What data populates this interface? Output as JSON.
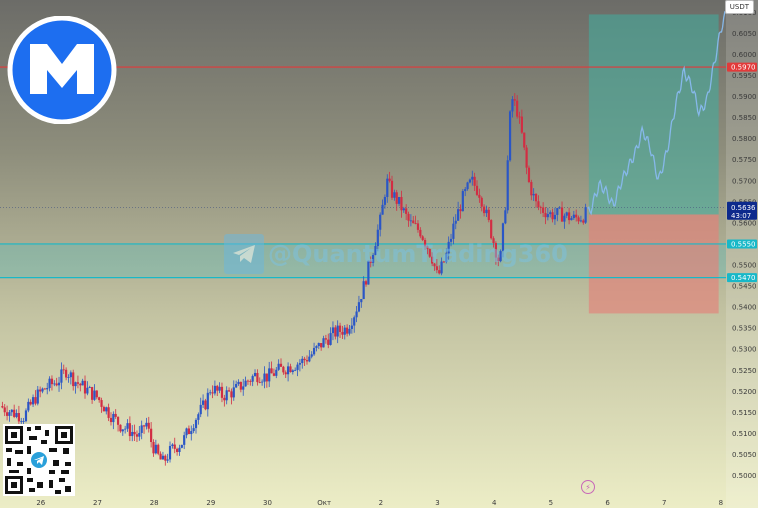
{
  "chart_data": {
    "type": "candlestick",
    "quote_currency": "USDT",
    "ylim": [
      0.498,
      0.6115
    ],
    "y_ticks": [
      "0.6100",
      "0.6050",
      "0.6000",
      "0.5950",
      "0.5900",
      "0.5850",
      "0.5800",
      "0.5750",
      "0.5700",
      "0.5650",
      "0.5600",
      "0.5550",
      "0.5500",
      "0.5450",
      "0.5400",
      "0.5350",
      "0.5300",
      "0.5250",
      "0.5200",
      "0.5150",
      "0.5100",
      "0.5050",
      "0.5000"
    ],
    "x_ticks": [
      "26",
      "27",
      "28",
      "29",
      "30",
      "Окт",
      "2",
      "3",
      "4",
      "5",
      "6",
      "7",
      "8"
    ],
    "x_tick_days": [
      0,
      1,
      2,
      3,
      4,
      5,
      6,
      7,
      8,
      9,
      10,
      11,
      12
    ],
    "xlim_days": [
      -0.72,
      12.09
    ],
    "last_price": {
      "value": "0.5636",
      "timer": "43:07",
      "price": 0.5636
    },
    "levels": [
      {
        "label": "0.5970",
        "price": 0.597,
        "color": "#e23a3a"
      },
      {
        "label": "0.5550",
        "price": 0.555,
        "color": "#18b8c8"
      },
      {
        "label": "0.5470",
        "price": 0.547,
        "color": "#18b8c8"
      }
    ],
    "zone": {
      "top": 0.555,
      "bottom": 0.547
    },
    "position": {
      "x_start_day": 9.67,
      "x_end_day": 11.96,
      "target": 0.6095,
      "entry": 0.562,
      "stop": 0.5385
    },
    "price_path": [
      [
        -0.72,
        0.5165
      ],
      [
        -0.5,
        0.515
      ],
      [
        -0.3,
        0.514
      ],
      [
        -0.1,
        0.5185
      ],
      [
        0.1,
        0.521
      ],
      [
        0.3,
        0.5225
      ],
      [
        0.45,
        0.525
      ],
      [
        0.6,
        0.5225
      ],
      [
        0.8,
        0.5205
      ],
      [
        1.0,
        0.5185
      ],
      [
        1.2,
        0.515
      ],
      [
        1.4,
        0.512
      ],
      [
        1.6,
        0.5105
      ],
      [
        1.75,
        0.509
      ],
      [
        1.85,
        0.513
      ],
      [
        1.95,
        0.508
      ],
      [
        2.05,
        0.505
      ],
      [
        2.15,
        0.503
      ],
      [
        2.3,
        0.506
      ],
      [
        2.5,
        0.508
      ],
      [
        2.7,
        0.513
      ],
      [
        2.9,
        0.517
      ],
      [
        3.0,
        0.521
      ],
      [
        3.2,
        0.519
      ],
      [
        3.4,
        0.52
      ],
      [
        3.6,
        0.522
      ],
      [
        3.8,
        0.524
      ],
      [
        4.0,
        0.5235
      ],
      [
        4.2,
        0.525
      ],
      [
        4.4,
        0.526
      ],
      [
        4.6,
        0.527
      ],
      [
        4.8,
        0.529
      ],
      [
        5.0,
        0.532
      ],
      [
        5.2,
        0.534
      ],
      [
        5.4,
        0.535
      ],
      [
        5.55,
        0.539
      ],
      [
        5.7,
        0.545
      ],
      [
        5.85,
        0.553
      ],
      [
        6.0,
        0.561
      ],
      [
        6.1,
        0.57
      ],
      [
        6.2,
        0.567
      ],
      [
        6.35,
        0.564
      ],
      [
        6.5,
        0.56
      ],
      [
        6.7,
        0.558
      ],
      [
        6.9,
        0.552
      ],
      [
        7.0,
        0.547
      ],
      [
        7.15,
        0.552
      ],
      [
        7.3,
        0.56
      ],
      [
        7.45,
        0.566
      ],
      [
        7.6,
        0.57
      ],
      [
        7.75,
        0.567
      ],
      [
        7.9,
        0.56
      ],
      [
        8.0,
        0.555
      ],
      [
        8.1,
        0.55
      ],
      [
        8.2,
        0.565
      ],
      [
        8.3,
        0.59
      ],
      [
        8.4,
        0.587
      ],
      [
        8.5,
        0.58
      ],
      [
        8.6,
        0.57
      ],
      [
        8.75,
        0.564
      ],
      [
        9.0,
        0.562
      ],
      [
        9.2,
        0.562
      ],
      [
        9.4,
        0.561
      ],
      [
        9.55,
        0.5615
      ],
      [
        9.7,
        0.563
      ],
      [
        9.85,
        0.569
      ],
      [
        9.95,
        0.568
      ],
      [
        10.1,
        0.564
      ],
      [
        10.25,
        0.57
      ],
      [
        10.5,
        0.577
      ],
      [
        10.62,
        0.582
      ],
      [
        10.75,
        0.578
      ],
      [
        10.9,
        0.57
      ],
      [
        11.05,
        0.577
      ],
      [
        11.2,
        0.588
      ],
      [
        11.35,
        0.596
      ],
      [
        11.5,
        0.592
      ],
      [
        11.62,
        0.586
      ],
      [
        11.75,
        0.589
      ],
      [
        11.9,
        0.599
      ],
      [
        12.0,
        0.606
      ],
      [
        12.08,
        0.6095
      ]
    ],
    "past_end_day": 9.65,
    "watermark": "@QuantumTrading360",
    "colors": {
      "up": "#2a56c6",
      "down": "#d22d43",
      "projection": "#86b8ea",
      "target_zone": "#3faea0",
      "stop_zone": "#e4817a",
      "last_price_bg": "#0d2a8c"
    }
  }
}
